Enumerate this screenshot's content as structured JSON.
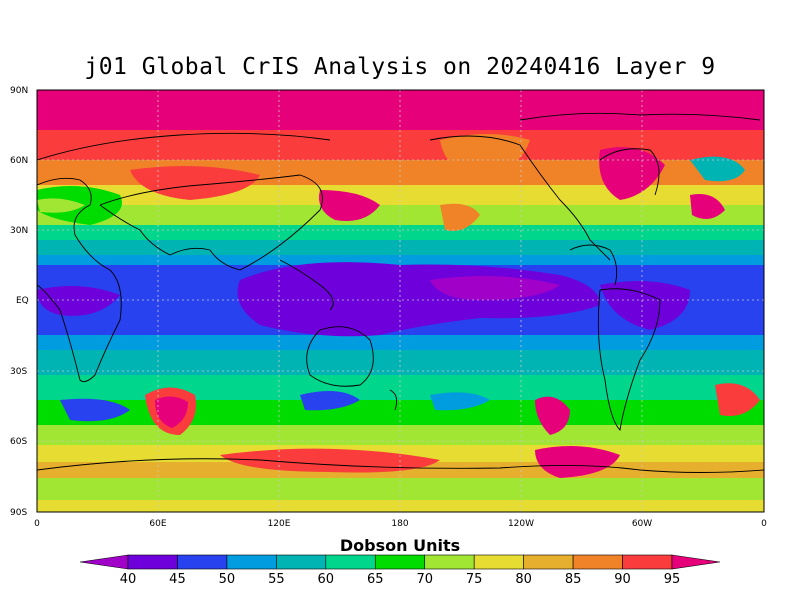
{
  "map": {
    "title": "j01 Global CrIS Analysis on 20240416 Layer 9",
    "lat_labels": [
      "90N",
      "60N",
      "30N",
      "EQ",
      "30S",
      "60S",
      "90S"
    ],
    "lon_labels": [
      "0",
      "60E",
      "120E",
      "180",
      "120W",
      "60W",
      "0"
    ],
    "colorbar_title": "Dobson Units",
    "colorbar": {
      "levels": [
        "40",
        "45",
        "50",
        "55",
        "60",
        "65",
        "70",
        "75",
        "80",
        "85",
        "90",
        "95"
      ],
      "colors": [
        "#a000c8",
        "#6e00dc",
        "#2842f0",
        "#009ce0",
        "#00b4b4",
        "#00d68c",
        "#00dc00",
        "#a0e632",
        "#e6dc32",
        "#e6af2d",
        "#f08228",
        "#fa3c3c",
        "#e6007a"
      ]
    }
  }
}
